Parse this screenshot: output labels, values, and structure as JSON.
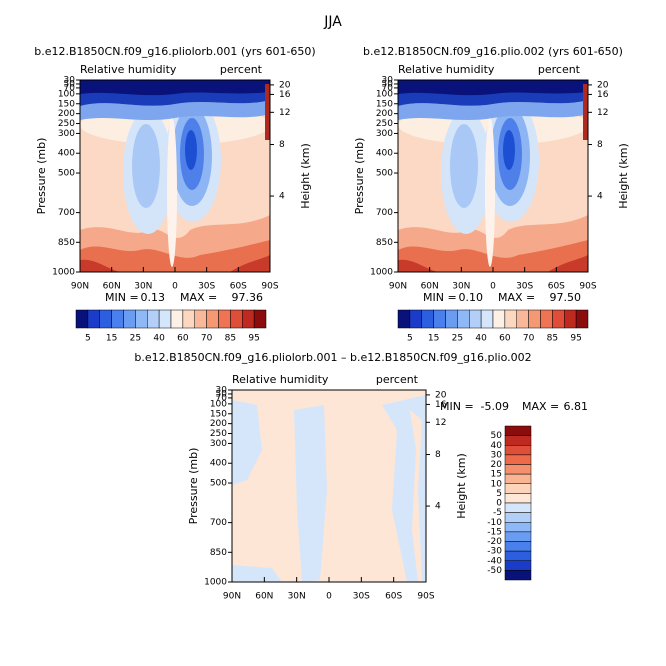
{
  "title": "JJA",
  "chart_data": [
    {
      "type": "contour",
      "title": "b.e12.B1850CN.f09_g16.pliolorb.001 (yrs 601-650)",
      "left_label": "Relative humidity",
      "right_label": "percent",
      "ylabel": "Pressure (mb)",
      "y2label": "Height (km)",
      "xlim": [
        90,
        -90
      ],
      "xticks": [
        {
          "value": 90,
          "label": "90N"
        },
        {
          "value": 60,
          "label": "60N"
        },
        {
          "value": 30,
          "label": "30N"
        },
        0,
        {
          "value": -30,
          "label": "30S"
        },
        {
          "value": -60,
          "label": "60S"
        },
        {
          "value": -90,
          "label": "90S"
        }
      ],
      "ylim": [
        1000,
        30
      ],
      "yticks": [
        30,
        50,
        70,
        100,
        150,
        200,
        250,
        300,
        400,
        500,
        700,
        850,
        1000
      ],
      "y2lim": [
        0.1,
        23.8
      ],
      "y2ticks": [
        4,
        8,
        12,
        16,
        20
      ],
      "min_text": "MIN =",
      "min": {
        "value": 0.13,
        "label": "0.13"
      },
      "max_text": "MAX =",
      "max": {
        "value": 97.36,
        "label": "97.36"
      },
      "colorbar": {
        "orientation": "horizontal",
        "labels": [
          5,
          15,
          25,
          40,
          60,
          70,
          85,
          95
        ],
        "colors": [
          "#08127a",
          "#1a3cc8",
          "#2c5ee0",
          "#4a80ee",
          "#6a9cf2",
          "#8fb8f6",
          "#b3cff8",
          "#d6e6fa",
          "#fdf0e4",
          "#fcd8c0",
          "#f9b89a",
          "#f59874",
          "#ee7454",
          "#de4e38",
          "#bf2a20",
          "#8a0c0c"
        ]
      }
    },
    {
      "type": "contour",
      "title": "b.e12.B1850CN.f09_g16.plio.002 (yrs 601-650)",
      "left_label": "Relative humidity",
      "right_label": "percent",
      "ylabel": "Pressure (mb)",
      "y2label": "Height (km)",
      "xlim": [
        90,
        -90
      ],
      "xticks": [
        {
          "value": 90,
          "label": "90N"
        },
        {
          "value": 60,
          "label": "60N"
        },
        {
          "value": 30,
          "label": "30N"
        },
        0,
        {
          "value": -30,
          "label": "30S"
        },
        {
          "value": -60,
          "label": "60S"
        },
        {
          "value": -90,
          "label": "90S"
        }
      ],
      "ylim": [
        1000,
        30
      ],
      "yticks": [
        30,
        50,
        70,
        100,
        150,
        200,
        250,
        300,
        400,
        500,
        700,
        850,
        1000
      ],
      "y2lim": [
        0.1,
        23.8
      ],
      "y2ticks": [
        4,
        8,
        12,
        16,
        20
      ],
      "min_text": "MIN =",
      "min": {
        "value": 0.1,
        "label": "0.10"
      },
      "max_text": "MAX =",
      "max": {
        "value": 97.5,
        "label": "97.50"
      },
      "colorbar": {
        "orientation": "horizontal",
        "labels": [
          5,
          15,
          25,
          40,
          60,
          70,
          85,
          95
        ],
        "colors": [
          "#08127a",
          "#1a3cc8",
          "#2c5ee0",
          "#4a80ee",
          "#6a9cf2",
          "#8fb8f6",
          "#b3cff8",
          "#d6e6fa",
          "#fdf0e4",
          "#fcd8c0",
          "#f9b89a",
          "#f59874",
          "#ee7454",
          "#de4e38",
          "#bf2a20",
          "#8a0c0c"
        ]
      }
    },
    {
      "type": "contour",
      "title": "b.e12.B1850CN.f09_g16.pliolorb.001 – b.e12.B1850CN.f09_g16.plio.002",
      "left_label": "Relative humidity",
      "right_label": "percent",
      "ylabel": "Pressure (mb)",
      "y2label": "Height (km)",
      "xlim": [
        90,
        -90
      ],
      "xticks": [
        {
          "value": 90,
          "label": "90N"
        },
        {
          "value": 60,
          "label": "60N"
        },
        {
          "value": 30,
          "label": "30N"
        },
        0,
        {
          "value": -30,
          "label": "30S"
        },
        {
          "value": -60,
          "label": "60S"
        },
        {
          "value": -90,
          "label": "90S"
        }
      ],
      "ylim": [
        1000,
        30
      ],
      "yticks": [
        30,
        50,
        70,
        100,
        150,
        200,
        250,
        300,
        400,
        500,
        700,
        850,
        1000
      ],
      "y2lim": [
        0.1,
        23.8
      ],
      "y2ticks": [
        4,
        8,
        12,
        16,
        20
      ],
      "min_text": "MIN =",
      "min": {
        "value": -5.09,
        "label": "-5.09"
      },
      "max_text": "MAX =",
      "max": {
        "value": 6.81,
        "label": "6.81"
      },
      "colorbar": {
        "orientation": "vertical",
        "labels": [
          50,
          40,
          30,
          20,
          15,
          10,
          5,
          0,
          -5,
          -10,
          -15,
          -20,
          -30,
          -40,
          -50
        ],
        "colors": [
          "#8a0c0c",
          "#bf2a20",
          "#de4e38",
          "#ee6a48",
          "#f5906c",
          "#f9b494",
          "#fcd4bc",
          "#fde8d8",
          "#d6e6fa",
          "#b3cff8",
          "#8fb8f6",
          "#6a9cf2",
          "#4a80ee",
          "#2c5ee0",
          "#1a3cc8",
          "#08127a"
        ]
      }
    }
  ]
}
